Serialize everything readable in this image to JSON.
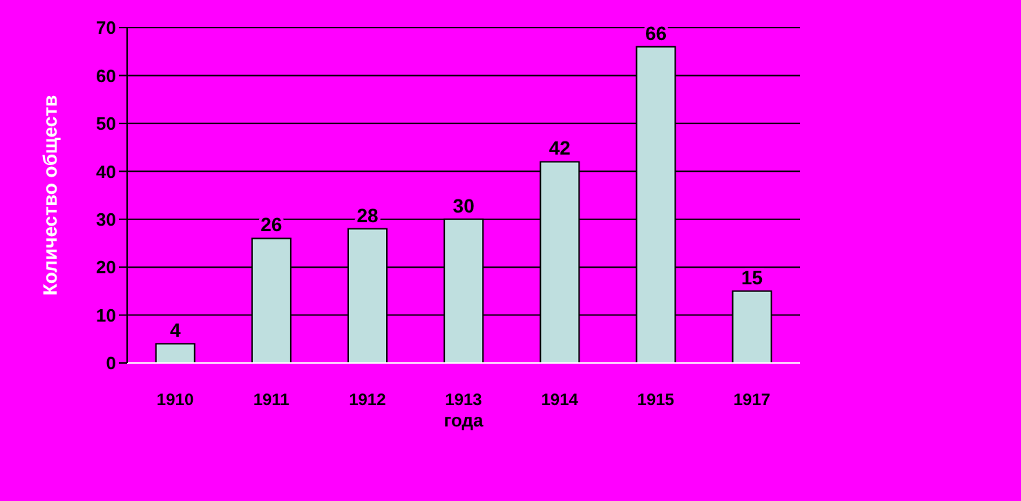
{
  "chart_data": {
    "type": "bar",
    "xlabel": "года",
    "ylabel": "Количество обществ",
    "categories": [
      "1910",
      "1911",
      "1912",
      "1913",
      "1914",
      "1915",
      "1917"
    ],
    "values": [
      4,
      26,
      28,
      30,
      42,
      66,
      15
    ],
    "color": "#bfdfdf",
    "ylim": [
      0,
      70
    ],
    "yticks": [
      0,
      10,
      20,
      30,
      40,
      50,
      60,
      70
    ],
    "grid": "y",
    "data_labels": true
  }
}
